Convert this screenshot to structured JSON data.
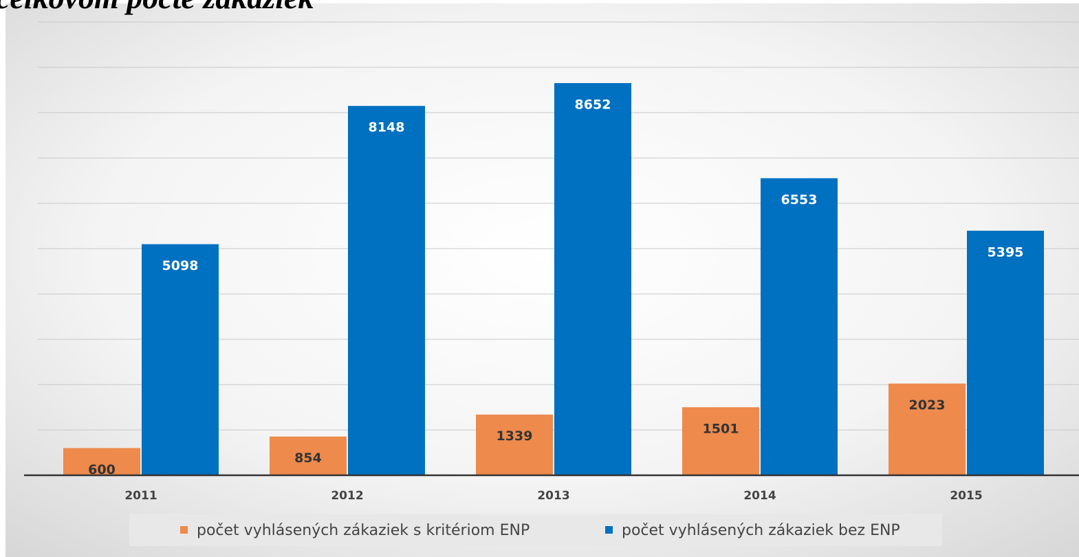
{
  "chart_data": {
    "type": "bar",
    "title": "celkovom počte zákaziek",
    "categories": [
      "2011",
      "2012",
      "2013",
      "2014",
      "2015"
    ],
    "series": [
      {
        "name": "počet vyhlásených zákaziek s kritériom ENP",
        "color": "#ed8a4c",
        "values": [
          600,
          854,
          1339,
          1501,
          2023
        ]
      },
      {
        "name": "počet vyhlásených zákaziek bez ENP",
        "color": "#0070c0",
        "values": [
          5098,
          8148,
          8652,
          6553,
          5395
        ]
      }
    ],
    "ylim": [
      0,
      10000
    ],
    "yticks": [
      0,
      1000,
      2000,
      3000,
      4000,
      5000,
      6000,
      7000,
      8000,
      9000,
      10000
    ],
    "grid": true,
    "legend": "bottom"
  }
}
